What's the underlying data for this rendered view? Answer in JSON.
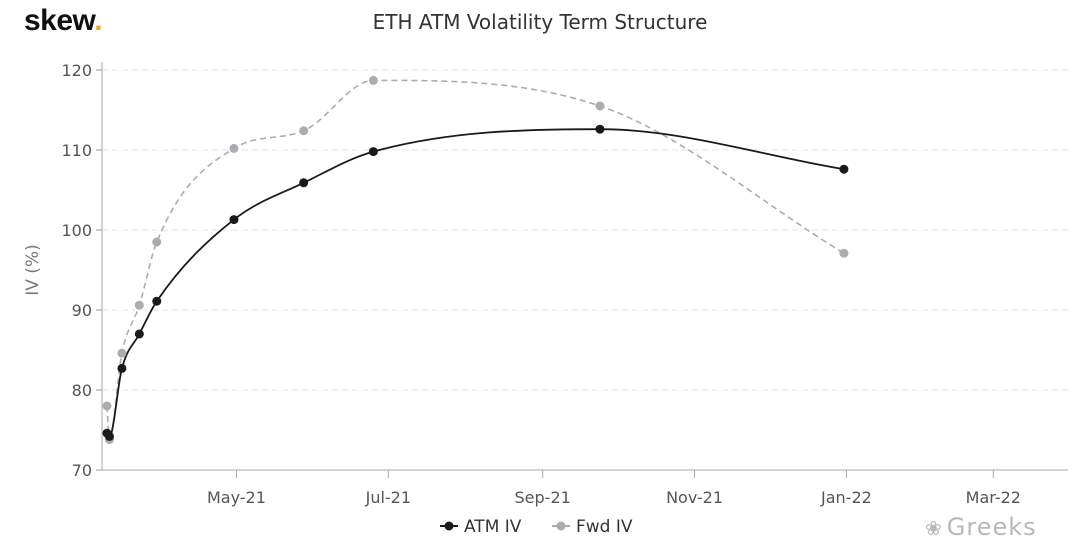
{
  "logo": {
    "text": "skew",
    "dot": "."
  },
  "watermark": {
    "text": "Greeks"
  },
  "chart_data": {
    "type": "line",
    "title": "ETH ATM Volatility Term Structure",
    "ylabel": "IV (%)",
    "xlabel": "",
    "ylim": [
      70,
      120
    ],
    "yticks": [
      70,
      80,
      90,
      100,
      110,
      120
    ],
    "xlim": [
      "2021-03-08",
      "2022-03-31"
    ],
    "xticks": [
      {
        "date": "2021-05-01",
        "label": "May-21"
      },
      {
        "date": "2021-07-01",
        "label": "Jul-21"
      },
      {
        "date": "2021-09-01",
        "label": "Sep-21"
      },
      {
        "date": "2021-11-01",
        "label": "Nov-21"
      },
      {
        "date": "2022-01-01",
        "label": "Jan-22"
      },
      {
        "date": "2022-03-01",
        "label": "Mar-22"
      }
    ],
    "grid": "horizontal dashed",
    "legend_position": "bottom",
    "series": [
      {
        "name": "ATM IV",
        "color": "#1a1a1a",
        "dash": false,
        "points": [
          {
            "x": "2021-03-10",
            "y": 74.6
          },
          {
            "x": "2021-03-11",
            "y": 74.2
          },
          {
            "x": "2021-03-16",
            "y": 82.7
          },
          {
            "x": "2021-03-23",
            "y": 87.0
          },
          {
            "x": "2021-03-30",
            "y": 91.1
          },
          {
            "x": "2021-04-30",
            "y": 101.3
          },
          {
            "x": "2021-05-28",
            "y": 105.9
          },
          {
            "x": "2021-06-25",
            "y": 109.8
          },
          {
            "x": "2021-09-24",
            "y": 112.6
          },
          {
            "x": "2021-12-31",
            "y": 107.6
          }
        ]
      },
      {
        "name": "Fwd IV",
        "color": "#a9adb1",
        "dash": true,
        "points": [
          {
            "x": "2021-03-10",
            "y": 78.0
          },
          {
            "x": "2021-03-11",
            "y": 73.8
          },
          {
            "x": "2021-03-16",
            "y": 84.6
          },
          {
            "x": "2021-03-23",
            "y": 90.6
          },
          {
            "x": "2021-03-30",
            "y": 98.5
          },
          {
            "x": "2021-04-30",
            "y": 110.2
          },
          {
            "x": "2021-05-28",
            "y": 112.4
          },
          {
            "x": "2021-06-25",
            "y": 118.7
          },
          {
            "x": "2021-09-24",
            "y": 115.5
          },
          {
            "x": "2021-12-31",
            "y": 97.1
          }
        ]
      }
    ]
  }
}
